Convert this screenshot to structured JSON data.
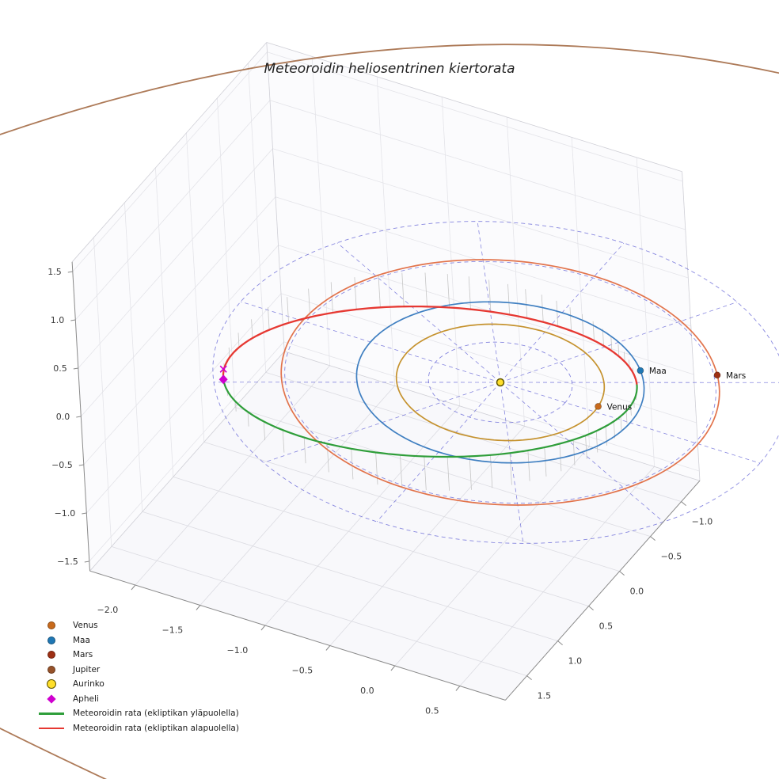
{
  "chart_data": {
    "type": "line",
    "projection": "3d",
    "title": "Meteoroidin heliosentrinen kiertorata",
    "axes": {
      "x_ticks": [
        "−2.0",
        "−1.5",
        "−1.0",
        "−0.5",
        "0.0",
        "0.5"
      ],
      "x_tick_values": [
        -2.0,
        -1.5,
        -1.0,
        -0.5,
        0.0,
        0.5
      ],
      "y_ticks": [
        "−1.0",
        "−0.5",
        "0.0",
        "0.5",
        "1.0",
        "1.5"
      ],
      "y_tick_values": [
        -1.0,
        -0.5,
        0.0,
        0.5,
        1.0,
        1.5
      ],
      "z_ticks": [
        "1.5",
        "1.0",
        "0.5",
        "0.0",
        "−0.5",
        "−1.0",
        "−1.5"
      ],
      "z_tick_values": [
        1.5,
        1.0,
        0.5,
        0.0,
        -0.5,
        -1.0,
        -1.5
      ],
      "x_range": [
        -2.35,
        0.85
      ],
      "y_range": [
        -1.3,
        1.85
      ],
      "z_range": [
        -1.6,
        1.6
      ],
      "grid": true
    },
    "sun": {
      "name": "Aurinko",
      "color": "#ffdf2b",
      "edge_color": "#5f5400",
      "position": [
        0,
        0,
        0
      ]
    },
    "planets": [
      {
        "name": "Venus",
        "orbit_radius_au": 0.723,
        "angle_deg": -5.7,
        "marker_color": "#c86a1c",
        "orbit_color": "#c5922e",
        "label_visible": true
      },
      {
        "name": "Maa",
        "orbit_radius_au": 1.0,
        "angle_deg": -38.5,
        "marker_color": "#1f77b4",
        "orbit_color": "#3f7fc1",
        "label_visible": true
      },
      {
        "name": "Mars",
        "orbit_radius_au": 1.524,
        "angle_deg": -33.5,
        "marker_color": "#9e3014",
        "orbit_color": "#e2734b",
        "label_visible": true
      },
      {
        "name": "Jupiter",
        "orbit_radius_au": 5.2,
        "angle_deg": null,
        "marker_color": "#96522a",
        "orbit_color": "#ad7a58",
        "label_visible": false
      }
    ],
    "meteoroid": {
      "semi_major_axis_au": 1.44,
      "eccentricity": 0.34,
      "inclination_deg": 15,
      "perihelion_angle_deg": -29,
      "above_label": "Meteoroidin rata (ekliptikan yläpuolella)",
      "below_label": "Meteoroidin rata (ekliptikan alapuolella)",
      "above_color": "#2f9e3a",
      "below_color": "#e63832"
    },
    "aphelion": {
      "label": "Apheli",
      "color": "#cf00cf",
      "r_au": 1.93,
      "angle_deg": 151
    },
    "ecliptic_grid": {
      "circle_radii_au": [
        0.5,
        1.0,
        1.5,
        2.0
      ],
      "n_spokes": 12,
      "color": "#4848cf"
    },
    "legend": [
      {
        "label": "Venus",
        "marker": "dot",
        "color": "#c86a1c"
      },
      {
        "label": "Maa",
        "marker": "dot",
        "color": "#1f77b4"
      },
      {
        "label": "Mars",
        "marker": "dot",
        "color": "#9e3014"
      },
      {
        "label": "Jupiter",
        "marker": "dot",
        "color": "#96522a"
      },
      {
        "label": "Aurinko",
        "marker": "dot-large",
        "color": "#ffdf2b",
        "edge": "#5f5400"
      },
      {
        "label": "Apheli",
        "marker": "diamond",
        "color": "#cf00cf"
      },
      {
        "label": "Meteoroidin rata (ekliptikan yläpuolella)",
        "marker": "line",
        "color": "#2f9e3a"
      },
      {
        "label": "Meteoroidin rata (ekliptikan alapuolella)",
        "marker": "line",
        "color": "#e63832"
      }
    ]
  }
}
